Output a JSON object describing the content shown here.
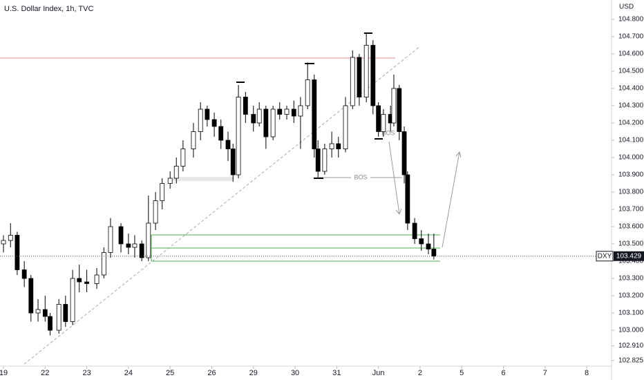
{
  "chart_data": {
    "type": "candlestick",
    "title": "U.S. Dollar Index, 1h, TVC",
    "currency": "USD",
    "x": [
      0,
      0.17,
      0.33,
      0.5,
      0.66,
      0.83,
      1,
      1.12,
      1.33,
      1.49,
      1.66,
      1.82,
      2,
      2.24,
      2.41,
      2.57,
      2.82,
      3,
      3.15,
      3.32,
      3.48,
      3.65,
      3.81,
      4,
      4.15,
      4.31,
      4.56,
      4.73,
      4.89,
      5.06,
      5.22,
      5.39,
      5.51,
      5.64,
      5.81,
      6,
      6.14,
      6.3,
      6.47,
      6.63,
      6.8,
      6.97,
      7.13,
      7.3,
      7.46,
      7.55,
      7.71,
      7.88,
      8.04,
      8.21,
      8.38,
      8.54,
      8.71,
      8.87,
      9,
      9.12,
      9.29,
      9.37,
      9.5,
      9.62,
      9.7,
      9.87,
      10.03,
      10.2,
      10.33
    ],
    "open": [
      103.5,
      103.52,
      103.55,
      103.35,
      103.3,
      103.1,
      103.12,
      103.08,
      103,
      103.15,
      103.05,
      103.3,
      103.28,
      103.27,
      103.32,
      103.45,
      103.6,
      103.5,
      103.48,
      103.5,
      103.42,
      103.62,
      103.75,
      103.85,
      103.88,
      103.95,
      104.05,
      104.15,
      104.28,
      104.22,
      104.18,
      104.1,
      104.05,
      103.9,
      104.35,
      104.25,
      104.2,
      104.28,
      104.12,
      104.28,
      104.25,
      104.28,
      104.24,
      104.3,
      104.45,
      104.05,
      103.92,
      104.05,
      104.08,
      104.05,
      104.3,
      104.58,
      104.35,
      104.65,
      104.3,
      104.15,
      104.25,
      104.2,
      104.4,
      104.15,
      103.9,
      103.62,
      103.53,
      103.5,
      103.47
    ],
    "high": [
      103.55,
      103.62,
      103.57,
      103.4,
      103.32,
      103.18,
      103.2,
      103.1,
      103.18,
      103.2,
      103.35,
      103.38,
      103.35,
      103.36,
      103.48,
      103.65,
      103.62,
      103.56,
      103.55,
      103.52,
      103.78,
      103.8,
      103.88,
      103.92,
      104,
      104.1,
      104.2,
      104.32,
      104.3,
      104.26,
      104.22,
      104.15,
      104.08,
      104.42,
      104.38,
      104.3,
      104.32,
      104.3,
      104.3,
      104.32,
      104.3,
      104.33,
      104.35,
      104.55,
      104.48,
      104.1,
      104.08,
      104.15,
      104.12,
      104.35,
      104.62,
      104.6,
      104.72,
      104.68,
      104.32,
      104.28,
      104.3,
      104.48,
      104.42,
      104.18,
      103.92,
      103.65,
      103.58,
      103.56,
      103.56
    ],
    "low": [
      103.45,
      103.48,
      103.32,
      103.25,
      103.05,
      103.05,
      103.05,
      102.97,
      102.98,
      103.02,
      103.03,
      103.22,
      103.22,
      103.24,
      103.3,
      103.42,
      103.45,
      103.44,
      103.42,
      103.4,
      103.4,
      103.58,
      103.7,
      103.82,
      103.85,
      103.92,
      104,
      104.1,
      104.18,
      104.12,
      104.05,
      103.98,
      103.86,
      103.88,
      104.2,
      104.15,
      104.18,
      104.05,
      104.1,
      104.22,
      104.22,
      104.2,
      104.05,
      104.28,
      104,
      103.88,
      103.9,
      104,
      104,
      104.03,
      104.28,
      104.3,
      104.32,
      104.25,
      104.12,
      104.12,
      104.15,
      104.18,
      104.1,
      103.85,
      103.58,
      103.5,
      103.46,
      103.44,
      103.41
    ],
    "close": [
      103.52,
      103.55,
      103.35,
      103.3,
      103.1,
      103.12,
      103.08,
      103,
      103.15,
      103.05,
      103.3,
      103.28,
      103.27,
      103.32,
      103.45,
      103.6,
      103.5,
      103.48,
      103.5,
      103.42,
      103.62,
      103.75,
      103.85,
      103.88,
      103.95,
      104.05,
      104.15,
      104.28,
      104.22,
      104.18,
      104.1,
      104.05,
      103.9,
      104.35,
      104.25,
      104.2,
      104.28,
      104.12,
      104.28,
      104.25,
      104.28,
      104.24,
      104.3,
      104.45,
      104.05,
      103.92,
      104.05,
      104.08,
      104.05,
      104.3,
      104.58,
      104.35,
      104.65,
      104.3,
      104.15,
      104.25,
      104.2,
      104.4,
      104.15,
      103.9,
      103.62,
      103.53,
      103.5,
      103.47,
      103.429
    ],
    "xlim": [
      -0.083,
      14.595
    ],
    "xticks": [
      {
        "value": 0,
        "label": "19"
      },
      {
        "value": 1,
        "label": "22"
      },
      {
        "value": 2,
        "label": "23"
      },
      {
        "value": 3,
        "label": "24"
      },
      {
        "value": 4,
        "label": "25"
      },
      {
        "value": 5,
        "label": "26"
      },
      {
        "value": 6,
        "label": "29"
      },
      {
        "value": 7,
        "label": "30"
      },
      {
        "value": 8,
        "label": "31"
      },
      {
        "value": 9,
        "label": "Jun"
      },
      {
        "value": 10,
        "label": "2"
      },
      {
        "value": 11,
        "label": "5"
      },
      {
        "value": 12,
        "label": "6"
      },
      {
        "value": 13,
        "label": "7"
      },
      {
        "value": 14,
        "label": "8"
      }
    ],
    "ylim": [
      102.792,
      104.912
    ],
    "yticks": [
      {
        "value": 104.8,
        "label": "104.800"
      },
      {
        "value": 104.7,
        "label": "104.700"
      },
      {
        "value": 104.6,
        "label": "104.600"
      },
      {
        "value": 104.5,
        "label": "104.500"
      },
      {
        "value": 104.4,
        "label": "104.400"
      },
      {
        "value": 104.3,
        "label": "104.300"
      },
      {
        "value": 104.2,
        "label": "104.200"
      },
      {
        "value": 104.1,
        "label": "104.100"
      },
      {
        "value": 104,
        "label": "104.000"
      },
      {
        "value": 103.9,
        "label": "103.900"
      },
      {
        "value": 103.8,
        "label": "103.800"
      },
      {
        "value": 103.7,
        "label": "103.700"
      },
      {
        "value": 103.6,
        "label": "103.600"
      },
      {
        "value": 103.5,
        "label": "103.500"
      },
      {
        "value": 103.4,
        "label": "103.400"
      },
      {
        "value": 103.3,
        "label": "103.300"
      },
      {
        "value": 103.2,
        "label": "103.200"
      },
      {
        "value": 103.1,
        "label": "103.100"
      },
      {
        "value": 103,
        "label": "103.000"
      },
      {
        "value": 102.91,
        "label": "102.910"
      },
      {
        "value": 102.825,
        "label": "102.825"
      }
    ],
    "annotations": [
      "BOS",
      "BOS"
    ],
    "last_price": {
      "symbol": "DXY",
      "value": 103.429
    }
  }
}
